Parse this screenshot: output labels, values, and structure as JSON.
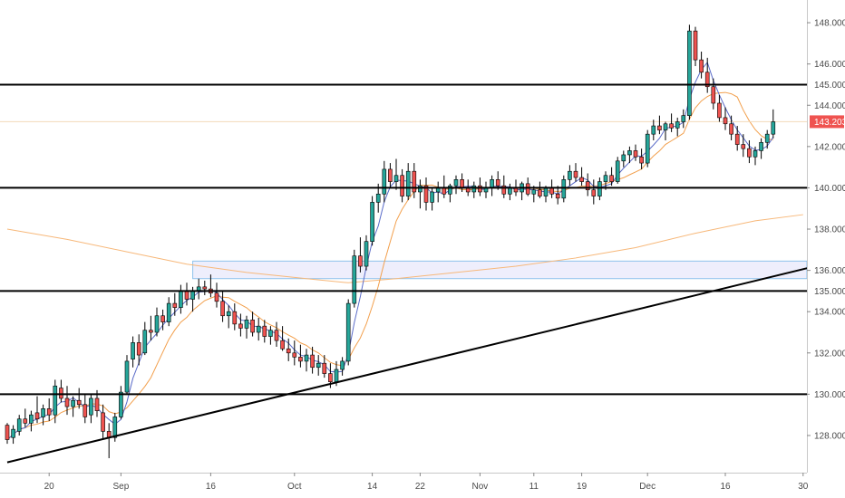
{
  "chart_data": {
    "type": "candlestick",
    "instrument_note": "",
    "ylim": [
      126.2,
      149.1
    ],
    "y_ticks": [
      "128.000",
      "130.000",
      "132.000",
      "134.000",
      "136.000",
      "138.000",
      "140.000",
      "142.000",
      "144.000",
      "146.000",
      "148.000"
    ],
    "x_ticks": [
      {
        "label": "20",
        "day": 7
      },
      {
        "label": "Sep",
        "day": 19
      },
      {
        "label": "16",
        "day": 34
      },
      {
        "label": "Oct",
        "day": 48
      },
      {
        "label": "14",
        "day": 61
      },
      {
        "label": "22",
        "day": 69
      },
      {
        "label": "Nov",
        "day": 79
      },
      {
        "label": "11",
        "day": 88
      },
      {
        "label": "19",
        "day": 96
      },
      {
        "label": "Dec",
        "day": 107
      },
      {
        "label": "16",
        "day": 120
      },
      {
        "label": "30",
        "day": 133
      }
    ],
    "x_range_days": [
      0,
      135
    ],
    "horizontal_levels": [
      {
        "price": 145.0,
        "label": "145.000"
      },
      {
        "price": 140.0,
        "label": "140.000"
      },
      {
        "price": 135.0,
        "label": "135.000"
      },
      {
        "price": 130.0,
        "label": "130.000"
      }
    ],
    "current_price": {
      "price": 143.203,
      "label": "143.203"
    },
    "trendline": {
      "start": {
        "day": 0,
        "price": 126.7
      },
      "end": {
        "day": 135,
        "price": 136.2
      }
    },
    "zone": {
      "day_from": 31,
      "day_to": 135,
      "price_low": 135.6,
      "price_high": 136.45
    },
    "candles": [
      [
        128.5,
        128.6,
        127.6,
        127.8
      ],
      [
        127.9,
        128.5,
        127.6,
        128.3
      ],
      [
        128.2,
        129.0,
        128.0,
        128.8
      ],
      [
        128.8,
        129.3,
        128.4,
        128.6
      ],
      [
        128.6,
        129.2,
        128.2,
        129.0
      ],
      [
        129.1,
        129.9,
        128.6,
        128.8
      ],
      [
        128.9,
        129.5,
        128.5,
        129.3
      ],
      [
        129.3,
        129.8,
        128.7,
        129.0
      ],
      [
        129.0,
        130.7,
        128.6,
        130.4
      ],
      [
        130.3,
        130.7,
        129.6,
        129.8
      ],
      [
        129.8,
        130.4,
        129.0,
        129.4
      ],
      [
        129.4,
        129.9,
        128.9,
        129.7
      ],
      [
        129.7,
        130.3,
        129.3,
        129.5
      ],
      [
        129.5,
        130.0,
        128.6,
        128.9
      ],
      [
        129.0,
        130.0,
        128.6,
        129.8
      ],
      [
        129.8,
        130.2,
        128.9,
        129.2
      ],
      [
        129.1,
        129.5,
        127.8,
        128.2
      ],
      [
        128.2,
        128.6,
        126.9,
        127.9
      ],
      [
        127.9,
        129.1,
        127.7,
        128.9
      ],
      [
        128.9,
        130.4,
        128.8,
        130.1
      ],
      [
        130.1,
        131.9,
        130.0,
        131.6
      ],
      [
        131.7,
        132.8,
        131.3,
        132.5
      ],
      [
        132.5,
        132.9,
        131.4,
        131.9
      ],
      [
        132.0,
        133.5,
        131.9,
        133.1
      ],
      [
        133.1,
        133.8,
        132.6,
        133.0
      ],
      [
        133.0,
        134.2,
        132.8,
        133.8
      ],
      [
        133.8,
        134.1,
        133.1,
        133.5
      ],
      [
        133.5,
        134.7,
        133.3,
        134.4
      ],
      [
        134.4,
        134.9,
        133.8,
        134.2
      ],
      [
        134.2,
        135.3,
        133.9,
        135.0
      ],
      [
        135.0,
        135.4,
        134.3,
        134.6
      ],
      [
        134.6,
        135.2,
        134.0,
        135.0
      ],
      [
        135.0,
        135.6,
        134.6,
        135.2
      ],
      [
        135.2,
        135.5,
        134.8,
        135.1
      ],
      [
        135.1,
        135.8,
        134.7,
        134.9
      ],
      [
        134.9,
        135.4,
        134.2,
        134.5
      ],
      [
        134.5,
        135.0,
        133.5,
        133.8
      ],
      [
        133.8,
        134.3,
        133.2,
        134.0
      ],
      [
        134.0,
        134.4,
        133.1,
        133.4
      ],
      [
        133.4,
        133.9,
        132.8,
        133.2
      ],
      [
        133.2,
        133.8,
        132.7,
        133.6
      ],
      [
        133.6,
        134.0,
        132.8,
        133.0
      ],
      [
        133.0,
        133.7,
        132.6,
        133.3
      ],
      [
        133.3,
        133.6,
        132.5,
        132.8
      ],
      [
        132.8,
        133.3,
        132.4,
        133.1
      ],
      [
        133.1,
        133.5,
        132.3,
        132.6
      ],
      [
        132.6,
        133.3,
        132.1,
        132.2
      ],
      [
        132.2,
        132.7,
        131.6,
        132.0
      ],
      [
        132.0,
        132.6,
        131.4,
        131.8
      ],
      [
        131.8,
        132.4,
        131.3,
        131.6
      ],
      [
        131.6,
        132.2,
        131.1,
        131.9
      ],
      [
        131.9,
        132.3,
        131.0,
        131.3
      ],
      [
        131.3,
        131.9,
        130.9,
        131.5
      ],
      [
        131.5,
        131.9,
        130.8,
        131.0
      ],
      [
        131.0,
        131.5,
        130.3,
        130.6
      ],
      [
        130.6,
        131.6,
        130.4,
        131.2
      ],
      [
        131.2,
        131.8,
        130.9,
        131.6
      ],
      [
        131.6,
        134.6,
        131.4,
        134.4
      ],
      [
        134.4,
        137.0,
        134.2,
        136.7
      ],
      [
        136.7,
        137.6,
        135.9,
        136.2
      ],
      [
        136.2,
        137.7,
        136.0,
        137.4
      ],
      [
        137.4,
        139.6,
        137.2,
        139.3
      ],
      [
        139.3,
        140.2,
        138.8,
        139.7
      ],
      [
        139.7,
        141.3,
        139.3,
        140.9
      ],
      [
        140.9,
        141.2,
        140.0,
        140.3
      ],
      [
        140.3,
        141.4,
        139.9,
        140.6
      ],
      [
        140.6,
        140.9,
        139.3,
        139.6
      ],
      [
        139.6,
        141.2,
        139.4,
        140.8
      ],
      [
        140.8,
        141.2,
        139.5,
        139.8
      ],
      [
        139.8,
        140.4,
        139.0,
        140.1
      ],
      [
        140.1,
        140.5,
        138.9,
        139.3
      ],
      [
        139.3,
        140.0,
        138.9,
        139.8
      ],
      [
        139.8,
        140.3,
        139.3,
        140.0
      ],
      [
        140.0,
        140.6,
        139.5,
        139.7
      ],
      [
        139.7,
        140.2,
        139.3,
        140.1
      ],
      [
        140.1,
        140.6,
        139.7,
        140.4
      ],
      [
        140.4,
        140.7,
        139.8,
        140.0
      ],
      [
        140.0,
        140.4,
        139.6,
        139.8
      ],
      [
        139.8,
        140.3,
        139.5,
        140.1
      ],
      [
        140.1,
        140.5,
        139.6,
        139.8
      ],
      [
        139.8,
        140.3,
        139.5,
        140.0
      ],
      [
        140.0,
        140.6,
        139.6,
        140.4
      ],
      [
        140.4,
        140.8,
        139.9,
        140.1
      ],
      [
        140.1,
        140.6,
        139.5,
        139.7
      ],
      [
        139.7,
        140.2,
        139.4,
        140.0
      ],
      [
        140.0,
        140.4,
        139.6,
        139.8
      ],
      [
        139.8,
        140.3,
        139.4,
        140.2
      ],
      [
        140.2,
        140.5,
        139.6,
        139.7
      ],
      [
        139.7,
        140.1,
        139.3,
        139.9
      ],
      [
        139.9,
        140.3,
        139.5,
        139.6
      ],
      [
        139.6,
        140.1,
        139.3,
        140.0
      ],
      [
        140.0,
        140.4,
        139.5,
        139.7
      ],
      [
        139.7,
        140.1,
        139.2,
        139.5
      ],
      [
        139.5,
        140.6,
        139.3,
        140.4
      ],
      [
        140.4,
        141.1,
        140.1,
        140.8
      ],
      [
        140.8,
        141.2,
        140.3,
        140.5
      ],
      [
        140.5,
        141.0,
        140.1,
        140.3
      ],
      [
        140.3,
        140.7,
        139.6,
        139.9
      ],
      [
        139.9,
        140.4,
        139.2,
        139.6
      ],
      [
        139.6,
        140.5,
        139.4,
        140.3
      ],
      [
        140.3,
        140.8,
        139.9,
        140.6
      ],
      [
        140.6,
        141.0,
        140.1,
        140.3
      ],
      [
        140.3,
        141.5,
        140.2,
        141.3
      ],
      [
        141.3,
        141.8,
        141.0,
        141.6
      ],
      [
        141.6,
        142.0,
        141.2,
        141.8
      ],
      [
        141.8,
        142.1,
        141.3,
        141.5
      ],
      [
        141.5,
        141.9,
        140.9,
        141.2
      ],
      [
        141.2,
        142.8,
        141.0,
        142.6
      ],
      [
        142.6,
        143.3,
        142.3,
        143.0
      ],
      [
        143.0,
        143.5,
        142.6,
        142.8
      ],
      [
        142.8,
        143.2,
        142.3,
        143.1
      ],
      [
        143.1,
        143.6,
        142.7,
        142.9
      ],
      [
        142.9,
        143.4,
        142.5,
        143.2
      ],
      [
        143.2,
        143.8,
        142.9,
        143.5
      ],
      [
        143.5,
        147.9,
        143.3,
        147.6
      ],
      [
        147.6,
        147.8,
        145.9,
        146.2
      ],
      [
        146.2,
        146.6,
        145.3,
        145.6
      ],
      [
        145.6,
        146.3,
        144.6,
        144.9
      ],
      [
        144.9,
        145.3,
        143.8,
        144.1
      ],
      [
        144.1,
        144.5,
        143.2,
        143.4
      ],
      [
        143.4,
        143.9,
        142.8,
        143.1
      ],
      [
        143.1,
        143.5,
        142.3,
        142.6
      ],
      [
        142.6,
        143.0,
        141.8,
        142.1
      ],
      [
        142.1,
        142.6,
        141.5,
        141.9
      ],
      [
        141.9,
        142.3,
        141.2,
        141.5
      ],
      [
        141.5,
        142.0,
        141.1,
        141.8
      ],
      [
        141.8,
        142.4,
        141.4,
        142.2
      ],
      [
        142.2,
        142.8,
        141.9,
        142.6
      ],
      [
        142.6,
        143.8,
        142.4,
        143.2
      ]
    ],
    "series": [
      {
        "label": "ma_fast",
        "color": "#5b6cc9"
      },
      {
        "label": "ma_slow",
        "color": "#f29f4c"
      },
      {
        "label": "ma_long",
        "color": "#f7b87a",
        "points": [
          [
            0,
            138.0
          ],
          [
            10,
            137.5
          ],
          [
            20,
            136.9
          ],
          [
            30,
            136.3
          ],
          [
            40,
            135.9
          ],
          [
            50,
            135.6
          ],
          [
            57,
            135.4
          ],
          [
            65,
            135.6
          ],
          [
            75,
            135.9
          ],
          [
            85,
            136.2
          ],
          [
            95,
            136.6
          ],
          [
            105,
            137.1
          ],
          [
            115,
            137.8
          ],
          [
            125,
            138.4
          ],
          [
            133,
            138.7
          ]
        ]
      }
    ]
  },
  "colors": {
    "up": "#26a69a",
    "down": "#ef5350",
    "level_line": "#000000",
    "trendline": "#000000",
    "zone_fill": "#eeeefc",
    "zone_border": "#8ec2ec",
    "price_tag_bg": "#ef5350",
    "price_line": "#f2d9b8",
    "axis_bg": "#ffffff",
    "level_tag_bg": "#ffffff"
  }
}
